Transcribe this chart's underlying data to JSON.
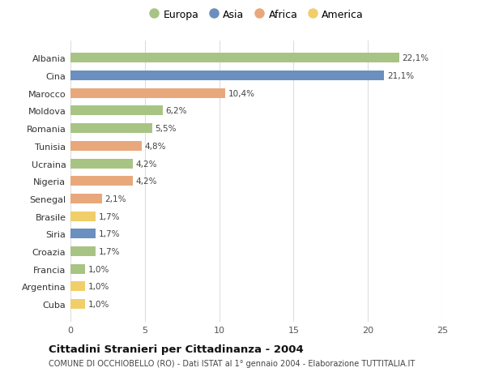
{
  "countries": [
    "Albania",
    "Cina",
    "Marocco",
    "Moldova",
    "Romania",
    "Tunisia",
    "Ucraina",
    "Nigeria",
    "Senegal",
    "Brasile",
    "Siria",
    "Croazia",
    "Francia",
    "Argentina",
    "Cuba"
  ],
  "values": [
    22.1,
    21.1,
    10.4,
    6.2,
    5.5,
    4.8,
    4.2,
    4.2,
    2.1,
    1.7,
    1.7,
    1.7,
    1.0,
    1.0,
    1.0
  ],
  "labels": [
    "22,1%",
    "21,1%",
    "10,4%",
    "6,2%",
    "5,5%",
    "4,8%",
    "4,2%",
    "4,2%",
    "2,1%",
    "1,7%",
    "1,7%",
    "1,7%",
    "1,0%",
    "1,0%",
    "1,0%"
  ],
  "continents": [
    "Europa",
    "Asia",
    "Africa",
    "Europa",
    "Europa",
    "Africa",
    "Europa",
    "Africa",
    "Africa",
    "America",
    "Asia",
    "Europa",
    "Europa",
    "America",
    "America"
  ],
  "continent_colors": {
    "Europa": "#a8c484",
    "Asia": "#6b8fbe",
    "Africa": "#e8a87c",
    "America": "#f0ce6a"
  },
  "legend_entries": [
    "Europa",
    "Asia",
    "Africa",
    "America"
  ],
  "title": "Cittadini Stranieri per Cittadinanza - 2004",
  "subtitle": "COMUNE DI OCCHIOBELLO (RO) - Dati ISTAT al 1° gennaio 2004 - Elaborazione TUTTITALIA.IT",
  "xlim": [
    0,
    25
  ],
  "xticks": [
    0,
    5,
    10,
    15,
    20,
    25
  ],
  "background_color": "#ffffff",
  "grid_color": "#dddddd"
}
